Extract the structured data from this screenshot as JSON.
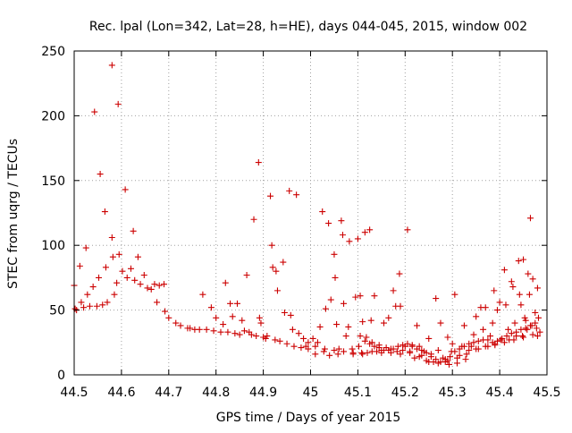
{
  "chart_data": {
    "type": "scatter",
    "title": "Rec. lpal (Lon=342, Lat=28, h=HE), days 044-045, 2015, window 002",
    "xlabel": "GPS time / Days of year 2015",
    "ylabel": "STEC from uqrg / TECUs",
    "xlim": [
      44.5,
      45.5
    ],
    "ylim": [
      0,
      250
    ],
    "x_ticks": [
      "44.5",
      "44.6",
      "44.7",
      "44.8",
      "44.9",
      "45",
      "45.1",
      "45.2",
      "45.3",
      "45.4",
      "45.5"
    ],
    "y_ticks": [
      "0",
      "50",
      "100",
      "150",
      "200",
      "250"
    ],
    "grid": true,
    "marker": "+",
    "marker_color": "#cc0000",
    "points": [
      [
        44.5,
        69
      ],
      [
        44.502,
        51
      ],
      [
        44.505,
        50
      ],
      [
        44.512,
        84
      ],
      [
        44.515,
        56
      ],
      [
        44.52,
        52
      ],
      [
        44.525,
        98
      ],
      [
        44.528,
        62
      ],
      [
        44.533,
        53
      ],
      [
        44.54,
        68
      ],
      [
        44.543,
        203
      ],
      [
        44.548,
        53
      ],
      [
        44.552,
        75
      ],
      [
        44.555,
        155
      ],
      [
        44.56,
        54
      ],
      [
        44.565,
        126
      ],
      [
        44.567,
        83
      ],
      [
        44.57,
        56
      ],
      [
        44.58,
        239
      ],
      [
        44.58,
        106
      ],
      [
        44.582,
        91
      ],
      [
        44.585,
        62
      ],
      [
        44.59,
        71
      ],
      [
        44.593,
        209
      ],
      [
        44.595,
        93
      ],
      [
        44.602,
        80
      ],
      [
        44.608,
        143
      ],
      [
        44.612,
        75
      ],
      [
        44.62,
        82
      ],
      [
        44.625,
        111
      ],
      [
        44.628,
        73
      ],
      [
        44.635,
        91
      ],
      [
        44.64,
        70
      ],
      [
        44.648,
        77
      ],
      [
        44.655,
        67
      ],
      [
        44.663,
        66
      ],
      [
        44.67,
        70
      ],
      [
        44.675,
        56
      ],
      [
        44.68,
        69
      ],
      [
        44.69,
        70
      ],
      [
        44.692,
        49
      ],
      [
        44.7,
        44
      ],
      [
        44.715,
        40
      ],
      [
        44.725,
        38
      ],
      [
        44.74,
        36
      ],
      [
        44.745,
        36
      ],
      [
        44.755,
        35
      ],
      [
        44.765,
        35
      ],
      [
        44.772,
        62
      ],
      [
        44.78,
        35
      ],
      [
        44.79,
        52
      ],
      [
        44.795,
        34
      ],
      [
        44.8,
        44
      ],
      [
        44.81,
        33
      ],
      [
        44.815,
        39
      ],
      [
        44.82,
        71
      ],
      [
        44.825,
        33
      ],
      [
        44.83,
        55
      ],
      [
        44.835,
        45
      ],
      [
        44.84,
        32
      ],
      [
        44.845,
        55
      ],
      [
        44.85,
        31
      ],
      [
        44.855,
        42
      ],
      [
        44.86,
        34
      ],
      [
        44.865,
        77
      ],
      [
        44.87,
        33
      ],
      [
        44.875,
        31
      ],
      [
        44.88,
        120
      ],
      [
        44.885,
        30
      ],
      [
        44.89,
        164
      ],
      [
        44.892,
        44
      ],
      [
        44.895,
        40
      ],
      [
        44.9,
        29
      ],
      [
        44.905,
        28
      ],
      [
        44.908,
        30
      ],
      [
        44.915,
        138
      ],
      [
        44.918,
        100
      ],
      [
        44.92,
        83
      ],
      [
        44.925,
        27
      ],
      [
        44.927,
        80
      ],
      [
        44.93,
        65
      ],
      [
        44.935,
        26
      ],
      [
        44.942,
        87
      ],
      [
        44.945,
        48
      ],
      [
        44.95,
        24
      ],
      [
        44.955,
        142
      ],
      [
        44.958,
        46
      ],
      [
        44.962,
        35
      ],
      [
        44.965,
        22
      ],
      [
        44.97,
        139
      ],
      [
        44.975,
        32
      ],
      [
        44.98,
        21
      ],
      [
        44.985,
        28
      ],
      [
        44.99,
        22
      ],
      [
        44.995,
        20
      ],
      [
        44.995,
        25
      ],
      [
        45.005,
        28
      ],
      [
        45.01,
        16
      ],
      [
        45.015,
        25
      ],
      [
        45.02,
        37
      ],
      [
        45.025,
        126
      ],
      [
        45.028,
        18
      ],
      [
        45.032,
        51
      ],
      [
        45.038,
        117
      ],
      [
        45.04,
        15
      ],
      [
        45.043,
        58
      ],
      [
        45.05,
        93
      ],
      [
        45.052,
        75
      ],
      [
        45.055,
        39
      ],
      [
        45.058,
        16
      ],
      [
        45.06,
        20
      ],
      [
        45.065,
        119
      ],
      [
        45.068,
        108
      ],
      [
        45.07,
        55
      ],
      [
        45.075,
        30
      ],
      [
        45.08,
        37
      ],
      [
        45.082,
        103
      ],
      [
        45.088,
        20
      ],
      [
        45.09,
        16
      ],
      [
        45.095,
        60
      ],
      [
        45.1,
        105
      ],
      [
        45.102,
        22
      ],
      [
        45.105,
        61
      ],
      [
        45.108,
        17
      ],
      [
        45.11,
        41
      ],
      [
        45.115,
        110
      ],
      [
        45.118,
        29
      ],
      [
        45.12,
        17
      ],
      [
        45.125,
        112
      ],
      [
        45.128,
        42
      ],
      [
        45.13,
        25
      ],
      [
        45.135,
        61
      ],
      [
        45.14,
        18
      ],
      [
        45.145,
        23
      ],
      [
        45.15,
        17
      ],
      [
        45.155,
        40
      ],
      [
        45.16,
        21
      ],
      [
        45.165,
        44
      ],
      [
        45.17,
        20
      ],
      [
        45.175,
        65
      ],
      [
        45.18,
        53
      ],
      [
        45.183,
        18
      ],
      [
        45.188,
        78
      ],
      [
        45.19,
        53
      ],
      [
        45.195,
        19
      ],
      [
        45.2,
        22
      ],
      [
        45.205,
        112
      ],
      [
        45.21,
        17
      ],
      [
        45.215,
        23
      ],
      [
        45.22,
        13
      ],
      [
        45.225,
        38
      ],
      [
        45.23,
        22
      ],
      [
        45.235,
        15
      ],
      [
        45.24,
        18
      ],
      [
        45.245,
        11
      ],
      [
        45.25,
        28
      ],
      [
        45.255,
        16
      ],
      [
        45.26,
        10
      ],
      [
        45.265,
        59
      ],
      [
        45.27,
        19
      ],
      [
        45.275,
        40
      ],
      [
        45.28,
        13
      ],
      [
        45.285,
        10
      ],
      [
        45.29,
        29
      ],
      [
        45.293,
        8
      ],
      [
        45.298,
        18
      ],
      [
        45.3,
        24
      ],
      [
        45.305,
        62
      ],
      [
        45.31,
        9
      ],
      [
        45.315,
        15
      ],
      [
        45.32,
        22
      ],
      [
        45.325,
        38
      ],
      [
        45.328,
        12
      ],
      [
        45.335,
        19
      ],
      [
        45.34,
        22
      ],
      [
        45.345,
        31
      ],
      [
        45.35,
        45
      ],
      [
        45.355,
        20
      ],
      [
        45.36,
        52
      ],
      [
        45.365,
        35
      ],
      [
        45.37,
        52
      ],
      [
        45.375,
        22
      ],
      [
        45.38,
        30
      ],
      [
        45.385,
        40
      ],
      [
        45.388,
        65
      ],
      [
        45.39,
        24
      ],
      [
        45.395,
        50
      ],
      [
        45.4,
        56
      ],
      [
        45.402,
        27
      ],
      [
        45.41,
        81
      ],
      [
        45.413,
        54
      ],
      [
        45.418,
        35
      ],
      [
        45.42,
        27
      ],
      [
        45.425,
        72
      ],
      [
        45.428,
        68
      ],
      [
        45.432,
        40
      ],
      [
        45.435,
        30
      ],
      [
        45.44,
        88
      ],
      [
        45.442,
        62
      ],
      [
        45.445,
        54
      ],
      [
        45.448,
        30
      ],
      [
        45.45,
        89
      ],
      [
        45.453,
        44
      ],
      [
        45.455,
        42
      ],
      [
        45.458,
        35
      ],
      [
        45.46,
        78
      ],
      [
        45.463,
        62
      ],
      [
        45.465,
        121
      ],
      [
        45.468,
        38
      ],
      [
        45.47,
        74
      ],
      [
        45.475,
        48
      ],
      [
        45.478,
        36
      ],
      [
        45.48,
        67
      ],
      [
        45.482,
        44
      ],
      [
        45.485,
        33
      ],
      [
        45.105,
        30
      ],
      [
        45.115,
        26
      ],
      [
        45.125,
        24
      ],
      [
        45.135,
        22
      ],
      [
        45.145,
        21
      ],
      [
        45.155,
        19
      ],
      [
        45.165,
        19
      ],
      [
        45.175,
        20
      ],
      [
        45.185,
        22
      ],
      [
        45.195,
        23
      ],
      [
        45.205,
        24
      ],
      [
        45.215,
        22
      ],
      [
        45.225,
        20
      ],
      [
        45.235,
        19
      ],
      [
        45.245,
        17
      ],
      [
        45.255,
        14
      ],
      [
        45.265,
        12
      ],
      [
        45.275,
        10
      ],
      [
        45.285,
        12
      ],
      [
        45.295,
        14
      ],
      [
        45.305,
        18
      ],
      [
        45.315,
        20
      ],
      [
        45.325,
        22
      ],
      [
        45.335,
        24
      ],
      [
        45.345,
        25
      ],
      [
        45.355,
        26
      ],
      [
        45.365,
        27
      ],
      [
        45.375,
        27
      ],
      [
        45.385,
        25
      ],
      [
        45.395,
        26
      ],
      [
        45.405,
        28
      ],
      [
        45.415,
        30
      ],
      [
        45.425,
        32
      ],
      [
        45.435,
        33
      ],
      [
        45.445,
        35
      ],
      [
        45.455,
        36
      ],
      [
        45.465,
        38
      ],
      [
        45.475,
        40
      ],
      [
        45.01,
        22
      ],
      [
        45.03,
        20
      ],
      [
        45.05,
        19
      ],
      [
        45.07,
        18
      ],
      [
        45.09,
        17
      ],
      [
        45.11,
        16
      ],
      [
        45.13,
        18
      ],
      [
        45.15,
        19
      ],
      [
        45.17,
        17
      ],
      [
        45.19,
        16
      ],
      [
        45.21,
        18
      ],
      [
        45.23,
        14
      ],
      [
        45.25,
        10
      ],
      [
        45.27,
        9
      ],
      [
        45.29,
        11
      ],
      [
        45.31,
        13
      ],
      [
        45.33,
        16
      ],
      [
        45.35,
        20
      ],
      [
        45.37,
        22
      ],
      [
        45.39,
        23
      ],
      [
        45.41,
        25
      ],
      [
        45.43,
        27
      ],
      [
        45.45,
        29
      ],
      [
        45.47,
        31
      ],
      [
        45.48,
        30
      ]
    ]
  }
}
